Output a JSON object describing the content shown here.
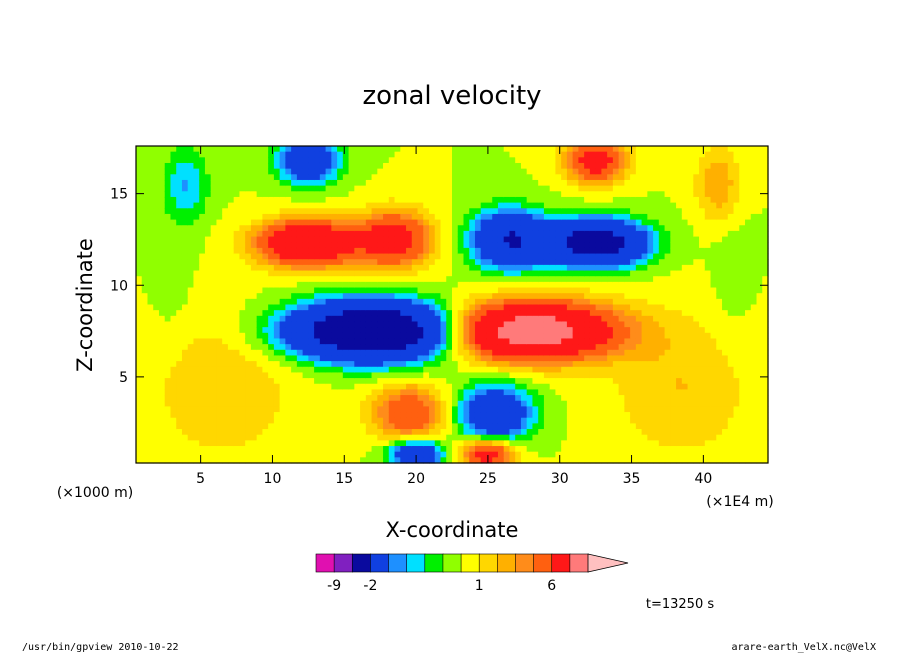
{
  "chart_data": {
    "type": "heatmap",
    "title": "zonal velocity",
    "xlabel": "X-coordinate",
    "ylabel": "Z-coordinate",
    "x_unit": "(×1000 m)",
    "x_unit2": "(×1E4 m)",
    "xlim": [
      0.5,
      44.5
    ],
    "ylim": [
      0.3,
      17.6
    ],
    "x_ticks": [
      5,
      10,
      15,
      20,
      25,
      30,
      35,
      40
    ],
    "y_ticks": [
      5,
      10,
      15
    ],
    "x_tick_labels": [
      "5",
      "10",
      "15",
      "20",
      "25",
      "30",
      "35",
      "40"
    ],
    "y_tick_labels": [
      "5",
      "10",
      "15"
    ],
    "colorbar": {
      "levels": [
        -12,
        -9,
        -5,
        -2,
        -1.5,
        -1,
        -0.5,
        0,
        0.5,
        1,
        1.5,
        2,
        3,
        6,
        8,
        12
      ],
      "colors": [
        "#e010b0",
        "#8020c0",
        "#0a0a9e",
        "#1040e0",
        "#1e90ff",
        "#00e0ff",
        "#00f000",
        "#90ff00",
        "#ffff00",
        "#ffd700",
        "#ffb000",
        "#ff8c1a",
        "#ff6010",
        "#ff1818",
        "#ff7a7a",
        "#ffc0c0"
      ],
      "tick_labels": [
        "-9",
        "-2",
        "1",
        "6"
      ],
      "tick_values": [
        -9,
        -2,
        1,
        6
      ]
    },
    "field_description": "Symmetric-antisymmetric zonal velocity field about x=22.5; positive (orange/red) and negative (blue) lobes at z≈7.5 and z≈12.5",
    "lobes": [
      {
        "x": 17,
        "z": 7.5,
        "sx": 5.5,
        "sz": 1.5,
        "amp": -9
      },
      {
        "x": 28,
        "z": 7.5,
        "sx": 5.5,
        "sz": 1.5,
        "amp": 8
      },
      {
        "x": 12.5,
        "z": 12.3,
        "sx": 3.3,
        "sz": 1.2,
        "amp": 6
      },
      {
        "x": 32.5,
        "z": 12.3,
        "sx": 3.3,
        "sz": 1.2,
        "amp": -7
      },
      {
        "x": 18.5,
        "z": 12.5,
        "sx": 2.5,
        "sz": 1.5,
        "amp": 4
      },
      {
        "x": 26.5,
        "z": 12.5,
        "sx": 2.5,
        "sz": 1.5,
        "amp": -5
      },
      {
        "x": 19.5,
        "z": 3,
        "sx": 2.5,
        "sz": 1.5,
        "amp": 3
      },
      {
        "x": 25.5,
        "z": 3,
        "sx": 2.5,
        "sz": 1.5,
        "amp": -4
      },
      {
        "x": 20,
        "z": 0.8,
        "sx": 1.8,
        "sz": 0.8,
        "amp": -4
      },
      {
        "x": 25,
        "z": 0.8,
        "sx": 1.8,
        "sz": 0.8,
        "amp": 4
      },
      {
        "x": 12.5,
        "z": 16.8,
        "sx": 2,
        "sz": 1.2,
        "amp": -4
      },
      {
        "x": 32.5,
        "z": 16.8,
        "sx": 2,
        "sz": 1.2,
        "amp": 4
      },
      {
        "x": 4,
        "z": 15.5,
        "sx": 1.5,
        "sz": 2,
        "amp": -1.5
      },
      {
        "x": 41,
        "z": 15.5,
        "sx": 1.5,
        "sz": 2,
        "amp": 1.5
      },
      {
        "x": 6.5,
        "z": 4.5,
        "sx": 5,
        "sz": 4,
        "amp": 1
      },
      {
        "x": 38.5,
        "z": 4.5,
        "sx": 5,
        "sz": 4,
        "amp": 1
      },
      {
        "x": 3,
        "z": 10,
        "sx": 1.5,
        "sz": 4,
        "amp": -0.3
      },
      {
        "x": 42,
        "z": 10,
        "sx": 1.5,
        "sz": 4,
        "amp": -0.3
      }
    ]
  },
  "time_label": "t=13250 s",
  "footer_left": "/usr/bin/gpview   2010-10-22",
  "footer_right": "arare-earth_VelX.nc@VelX"
}
